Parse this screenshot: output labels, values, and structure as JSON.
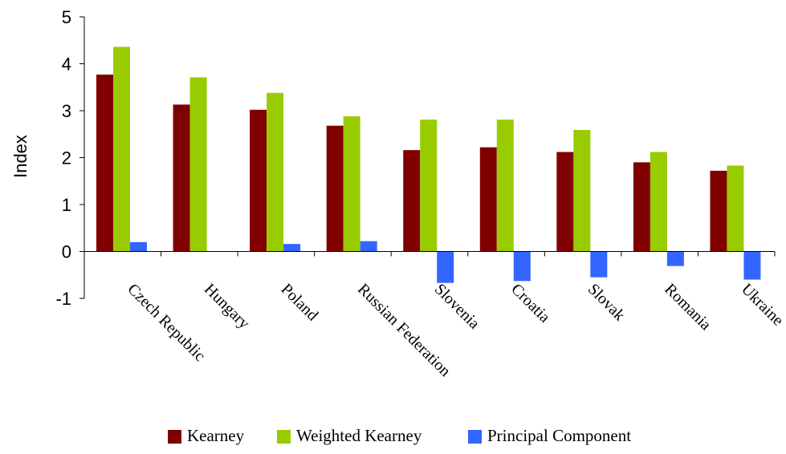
{
  "chart_data": {
    "type": "bar",
    "title": "",
    "xlabel": "",
    "ylabel": "Index",
    "ylim": [
      -1,
      5
    ],
    "yticks": [
      5,
      4,
      3,
      2,
      1,
      0,
      -1
    ],
    "grid": false,
    "legend_position": "bottom",
    "categories": [
      "Czech Republic",
      "Hungary",
      "Poland",
      "Russian Federation",
      "Slovenia",
      "Croatia",
      "Slovak",
      "Romania",
      "Ukraine"
    ],
    "series": [
      {
        "name": "Kearney",
        "color": "#800000",
        "values": [
          3.77,
          3.13,
          3.02,
          2.68,
          2.16,
          2.22,
          2.12,
          1.9,
          1.72
        ]
      },
      {
        "name": "Weighted Kearney",
        "color": "#99cc00",
        "values": [
          4.36,
          3.71,
          3.38,
          2.88,
          2.81,
          2.81,
          2.59,
          2.12,
          1.83
        ]
      },
      {
        "name": "Principal Component",
        "color": "#3366ff",
        "values": [
          0.2,
          0.0,
          0.16,
          0.22,
          -0.67,
          -0.63,
          -0.55,
          -0.31,
          -0.6
        ]
      }
    ]
  }
}
